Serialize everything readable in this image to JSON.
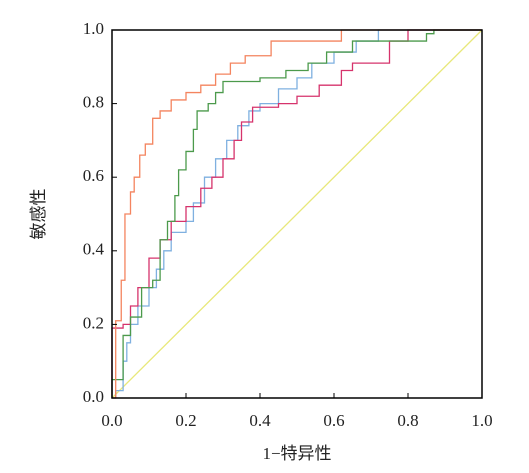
{
  "chart_data": {
    "type": "line",
    "xlabel": "1−特异性",
    "ylabel": "敏感性",
    "xlim": [
      0,
      1
    ],
    "ylim": [
      0,
      1
    ],
    "xticks": [
      {
        "value": 0,
        "label": "0.0"
      },
      {
        "value": 0.2,
        "label": "0.2"
      },
      {
        "value": 0.4,
        "label": "0.4"
      },
      {
        "value": 0.6,
        "label": "0.6"
      },
      {
        "value": 0.8,
        "label": "0.8"
      },
      {
        "value": 1,
        "label": "1.0"
      }
    ],
    "yticks": [
      {
        "value": 0,
        "label": "0.0"
      },
      {
        "value": 0.2,
        "label": "0.2"
      },
      {
        "value": 0.4,
        "label": "0.4"
      },
      {
        "value": 0.6,
        "label": "0.6"
      },
      {
        "value": 0.8,
        "label": "0.8"
      },
      {
        "value": 1,
        "label": "1.0"
      }
    ],
    "series": [
      {
        "color": "#e8e87a",
        "x": [
          0,
          1
        ],
        "y": [
          0,
          1
        ]
      },
      {
        "color": "#7fb0e0",
        "x": [
          0,
          0.01,
          0.01,
          0.03,
          0.03,
          0.04,
          0.04,
          0.05,
          0.05,
          0.07,
          0.07,
          0.1,
          0.1,
          0.12,
          0.12,
          0.14,
          0.14,
          0.16,
          0.16,
          0.2,
          0.2,
          0.22,
          0.22,
          0.25,
          0.25,
          0.28,
          0.28,
          0.31,
          0.31,
          0.34,
          0.34,
          0.37,
          0.37,
          0.4,
          0.4,
          0.45,
          0.45,
          0.5,
          0.5,
          0.54,
          0.54,
          0.6,
          0.6,
          0.66,
          0.66,
          0.72,
          0.72,
          1
        ],
        "y": [
          0,
          0,
          0.02,
          0.02,
          0.1,
          0.1,
          0.15,
          0.15,
          0.2,
          0.2,
          0.25,
          0.25,
          0.3,
          0.3,
          0.35,
          0.35,
          0.4,
          0.4,
          0.45,
          0.45,
          0.48,
          0.48,
          0.53,
          0.53,
          0.6,
          0.6,
          0.65,
          0.65,
          0.7,
          0.7,
          0.74,
          0.74,
          0.78,
          0.78,
          0.8,
          0.8,
          0.84,
          0.84,
          0.87,
          0.87,
          0.91,
          0.91,
          0.94,
          0.94,
          0.97,
          0.97,
          1,
          1
        ]
      },
      {
        "color": "#d6336c",
        "x": [
          0,
          0,
          0,
          0.03,
          0.03,
          0.05,
          0.05,
          0.07,
          0.07,
          0.1,
          0.1,
          0.13,
          0.13,
          0.16,
          0.16,
          0.2,
          0.2,
          0.24,
          0.24,
          0.27,
          0.27,
          0.3,
          0.3,
          0.33,
          0.33,
          0.35,
          0.35,
          0.38,
          0.38,
          0.45,
          0.45,
          0.5,
          0.5,
          0.56,
          0.56,
          0.62,
          0.62,
          0.65,
          0.65,
          0.75,
          0.75,
          0.8,
          0.8,
          1
        ],
        "y": [
          0,
          0,
          0.19,
          0.19,
          0.2,
          0.2,
          0.25,
          0.25,
          0.3,
          0.3,
          0.38,
          0.38,
          0.43,
          0.43,
          0.48,
          0.48,
          0.52,
          0.52,
          0.57,
          0.57,
          0.6,
          0.6,
          0.65,
          0.65,
          0.7,
          0.7,
          0.75,
          0.75,
          0.79,
          0.79,
          0.8,
          0.8,
          0.82,
          0.82,
          0.85,
          0.85,
          0.89,
          0.89,
          0.91,
          0.91,
          0.97,
          0.97,
          1,
          1
        ]
      },
      {
        "color": "#4c9a4c",
        "x": [
          0,
          0,
          0.03,
          0.03,
          0.05,
          0.05,
          0.08,
          0.08,
          0.11,
          0.11,
          0.13,
          0.13,
          0.15,
          0.15,
          0.17,
          0.17,
          0.18,
          0.18,
          0.2,
          0.2,
          0.22,
          0.22,
          0.23,
          0.23,
          0.26,
          0.26,
          0.28,
          0.28,
          0.3,
          0.3,
          0.4,
          0.4,
          0.47,
          0.47,
          0.53,
          0.53,
          0.58,
          0.58,
          0.65,
          0.65,
          0.85,
          0.85,
          0.87,
          0.87,
          1
        ],
        "y": [
          0,
          0.05,
          0.05,
          0.17,
          0.17,
          0.22,
          0.22,
          0.3,
          0.3,
          0.32,
          0.32,
          0.43,
          0.43,
          0.48,
          0.48,
          0.55,
          0.55,
          0.62,
          0.62,
          0.67,
          0.67,
          0.73,
          0.73,
          0.78,
          0.78,
          0.8,
          0.8,
          0.83,
          0.83,
          0.86,
          0.86,
          0.87,
          0.87,
          0.89,
          0.89,
          0.91,
          0.91,
          0.94,
          0.94,
          0.97,
          0.97,
          0.99,
          0.99,
          1,
          1
        ]
      },
      {
        "color": "#f4845f",
        "x": [
          0,
          0.01,
          0.01,
          0.025,
          0.025,
          0.035,
          0.035,
          0.05,
          0.05,
          0.06,
          0.06,
          0.075,
          0.075,
          0.09,
          0.09,
          0.11,
          0.11,
          0.13,
          0.13,
          0.16,
          0.16,
          0.2,
          0.2,
          0.24,
          0.24,
          0.28,
          0.28,
          0.32,
          0.32,
          0.36,
          0.36,
          0.43,
          0.43,
          0.62,
          0.62,
          1
        ],
        "y": [
          0,
          0,
          0.21,
          0.21,
          0.32,
          0.32,
          0.5,
          0.5,
          0.56,
          0.56,
          0.6,
          0.6,
          0.66,
          0.66,
          0.69,
          0.69,
          0.76,
          0.76,
          0.78,
          0.78,
          0.81,
          0.81,
          0.83,
          0.83,
          0.85,
          0.85,
          0.88,
          0.88,
          0.91,
          0.91,
          0.93,
          0.93,
          0.97,
          0.97,
          1,
          1
        ]
      }
    ]
  }
}
